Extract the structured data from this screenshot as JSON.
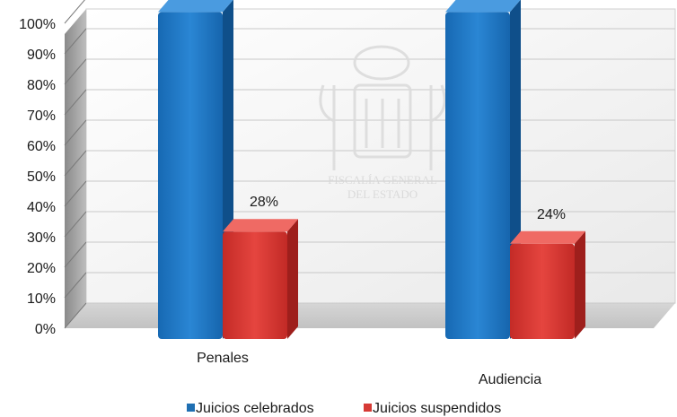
{
  "chart_data": {
    "type": "bar",
    "categories": [
      "Penales",
      "Audiencia"
    ],
    "series": [
      {
        "name": "Juicios celebrados",
        "values": [
          100,
          100
        ],
        "color": "#1f6fb2",
        "data_labels": [
          "",
          ""
        ]
      },
      {
        "name": "Juicios suspendidos",
        "values": [
          28,
          24
        ],
        "color": "#d63a35",
        "data_labels": [
          "28%",
          "24%"
        ]
      }
    ],
    "ylim": [
      0,
      100
    ],
    "yticks": [
      "0%",
      "10%",
      "20%",
      "30%",
      "40%",
      "50%",
      "60%",
      "70%",
      "80%",
      "90%",
      "100%"
    ],
    "grid": true,
    "style": "3d",
    "legend": "bottom",
    "watermark": [
      "FISCALÍA GENERAL",
      "DEL ESTADO"
    ]
  }
}
